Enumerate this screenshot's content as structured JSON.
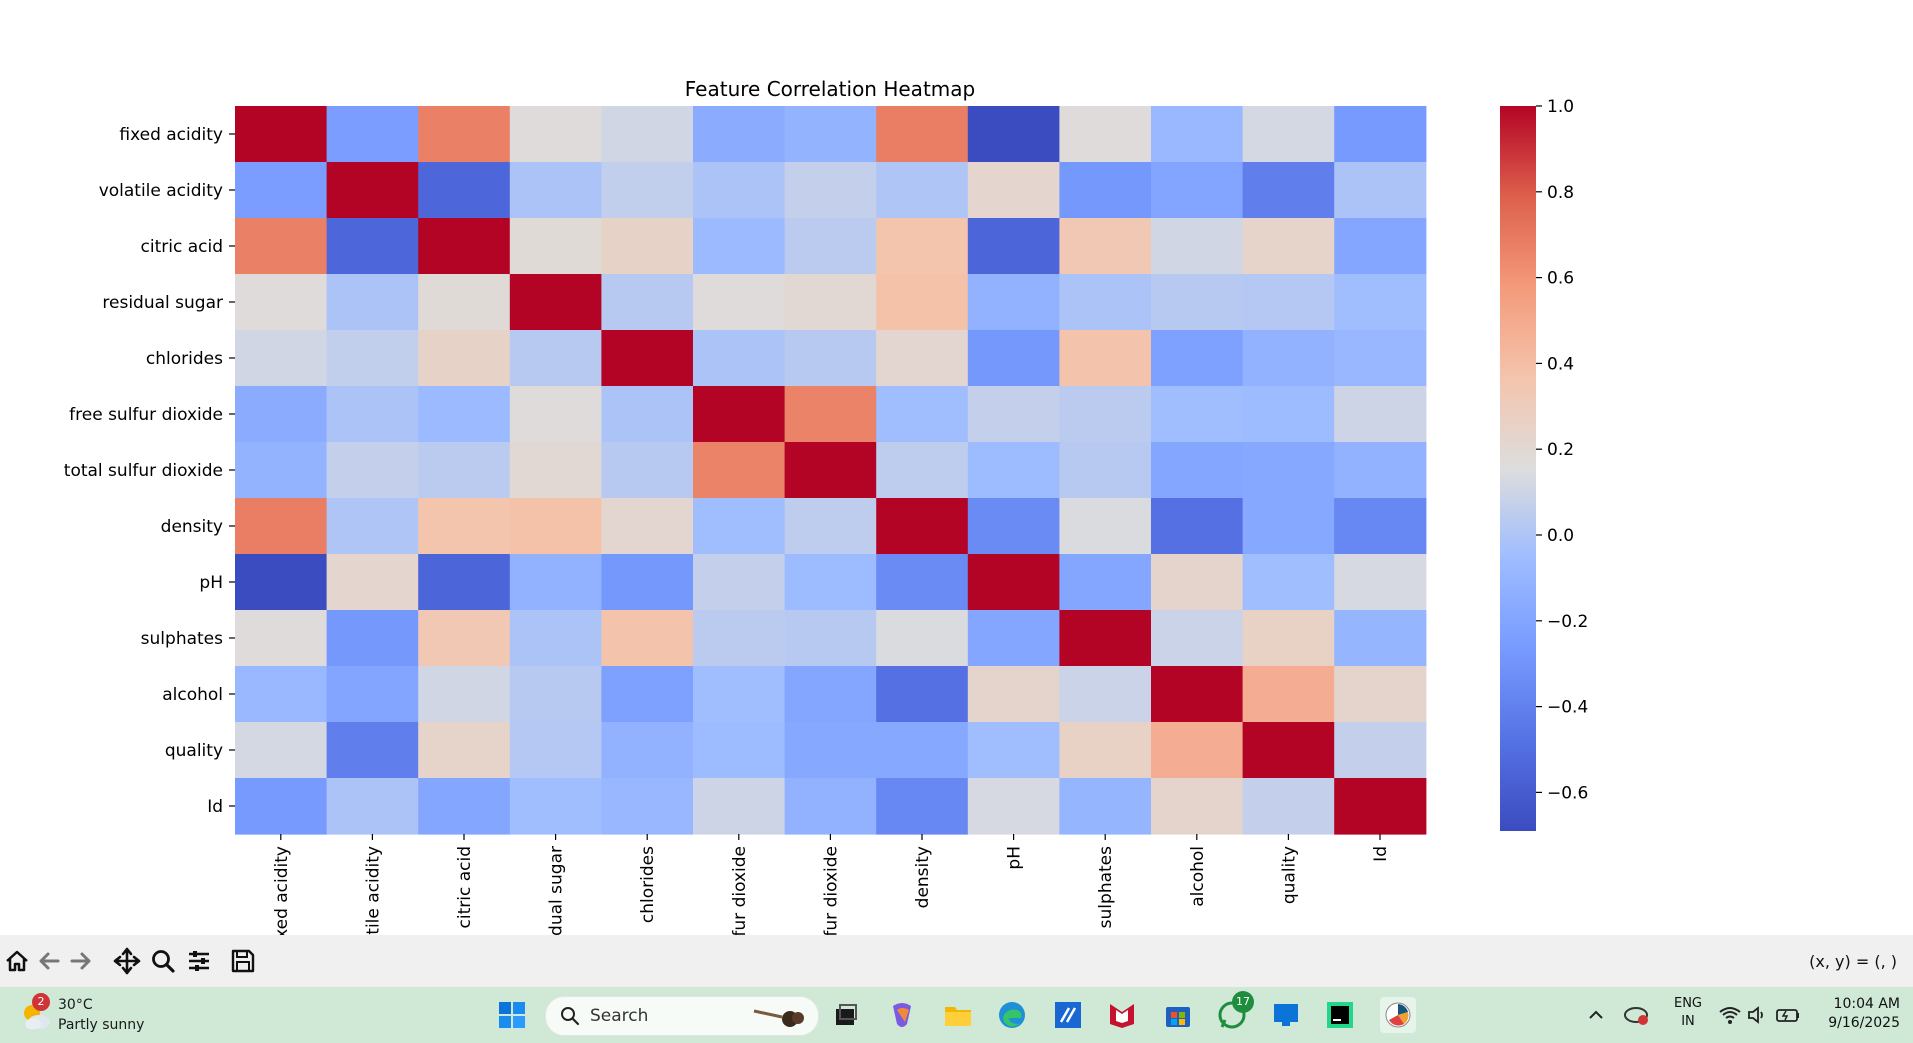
{
  "chart_data": {
    "type": "heatmap",
    "title": "Feature Correlation Heatmap",
    "labels": [
      "fixed acidity",
      "volatile acidity",
      "citric acid",
      "residual sugar",
      "chlorides",
      "free sulfur dioxide",
      "total sulfur dioxide",
      "density",
      "pH",
      "sulphates",
      "alcohol",
      "quality",
      "Id"
    ],
    "x_tick_labels_visible": [
      "xed acidity",
      "tile acidity",
      "citric acid",
      "dual sugar",
      "chlorides",
      "fur dioxide",
      "fur dioxide",
      "density",
      "pH",
      "sulphates",
      "alcohol",
      "quality",
      "Id"
    ],
    "values": [
      [
        1.0,
        -0.25,
        0.67,
        0.17,
        0.11,
        -0.16,
        -0.11,
        0.68,
        -0.69,
        0.17,
        -0.08,
        0.12,
        -0.27
      ],
      [
        -0.25,
        1.0,
        -0.54,
        -0.01,
        0.06,
        -0.01,
        0.07,
        0.0,
        0.22,
        -0.28,
        -0.2,
        -0.41,
        -0.01
      ],
      [
        0.67,
        -0.54,
        1.0,
        0.18,
        0.25,
        -0.07,
        0.04,
        0.36,
        -0.55,
        0.33,
        0.11,
        0.24,
        -0.19
      ],
      [
        0.17,
        -0.01,
        0.18,
        1.0,
        0.03,
        0.17,
        0.2,
        0.38,
        -0.12,
        -0.01,
        0.03,
        0.02,
        -0.05
      ],
      [
        0.11,
        0.06,
        0.25,
        0.03,
        1.0,
        -0.01,
        0.03,
        0.21,
        -0.28,
        0.37,
        -0.23,
        -0.12,
        -0.09
      ],
      [
        -0.16,
        -0.01,
        -0.07,
        0.17,
        -0.01,
        1.0,
        0.66,
        -0.05,
        0.07,
        0.04,
        -0.05,
        -0.06,
        0.1
      ],
      [
        -0.11,
        0.07,
        0.04,
        0.2,
        0.03,
        0.66,
        1.0,
        0.05,
        -0.06,
        0.03,
        -0.19,
        -0.18,
        -0.12
      ],
      [
        0.68,
        0.0,
        0.36,
        0.38,
        0.21,
        -0.05,
        0.05,
        1.0,
        -0.35,
        0.14,
        -0.49,
        -0.18,
        -0.37
      ],
      [
        -0.69,
        0.22,
        -0.55,
        -0.12,
        -0.28,
        0.07,
        -0.06,
        -0.35,
        1.0,
        -0.19,
        0.23,
        -0.05,
        0.13
      ],
      [
        0.17,
        -0.28,
        0.33,
        -0.01,
        0.37,
        0.04,
        0.03,
        0.14,
        -0.19,
        1.0,
        0.09,
        0.26,
        -0.1
      ],
      [
        -0.08,
        -0.2,
        0.11,
        0.03,
        -0.23,
        -0.05,
        -0.19,
        -0.49,
        0.23,
        0.09,
        1.0,
        0.48,
        0.23
      ],
      [
        0.12,
        -0.41,
        0.24,
        0.02,
        -0.12,
        -0.06,
        -0.18,
        -0.18,
        -0.05,
        0.26,
        0.48,
        1.0,
        0.07
      ],
      [
        -0.27,
        -0.01,
        -0.19,
        -0.05,
        -0.09,
        0.1,
        -0.12,
        -0.37,
        0.13,
        -0.1,
        0.23,
        0.07,
        1.0
      ]
    ],
    "vmin": -0.69,
    "vmax": 1.0,
    "colormap": "coolwarm",
    "colorbar_ticks": [
      1.0,
      0.8,
      0.6,
      0.4,
      0.2,
      0.0,
      -0.2,
      -0.4,
      -0.6
    ],
    "colorbar_tick_labels": [
      "1.0",
      "0.8",
      "0.6",
      "0.4",
      "0.2",
      "0.0",
      "−0.2",
      "−0.4",
      "−0.6"
    ],
    "xlabel": "",
    "ylabel": ""
  },
  "toolbar": {
    "buttons": [
      "home-icon",
      "back-icon",
      "forward-icon",
      "pan-icon",
      "zoom-icon",
      "configure-icon",
      "save-icon"
    ],
    "coords_text": "(x, y) = (, )"
  },
  "taskbar": {
    "weather_temp": "30°C",
    "weather_condition": "Partly sunny",
    "weather_badge": "2",
    "search_label": "Search",
    "whatsapp_badge": "17",
    "language": "ENG",
    "region": "IN",
    "time": "10:04 AM",
    "date": "9/16/2025",
    "colors": {
      "taskbar_bg": "#cfe9d6",
      "windows_blue": "#0a74d9",
      "badge_red": "#d13438",
      "badge_green": "#1e8e3e"
    }
  }
}
